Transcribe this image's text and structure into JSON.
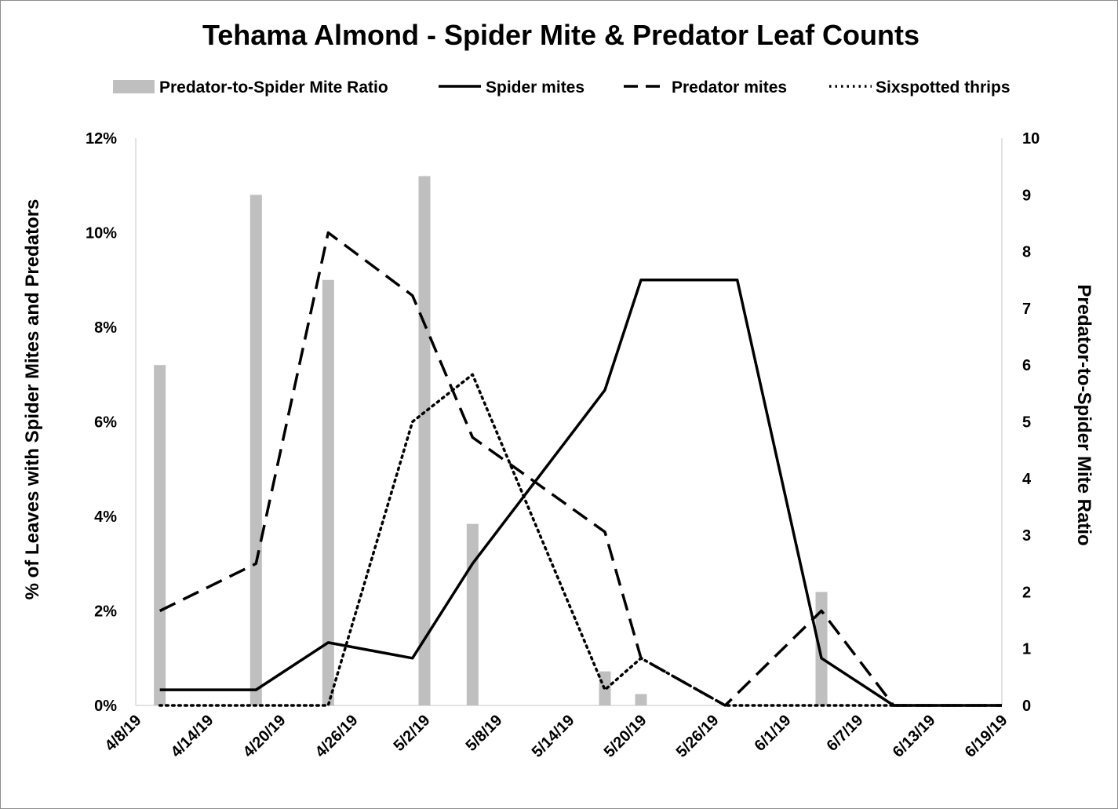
{
  "chart_data": {
    "type": "bar+line",
    "title": "Tehama Almond - Spider Mite & Predator Leaf Counts",
    "ylabel_left": "% of Leaves with Spider Mites and Predators",
    "ylabel_right": "Predator-to-Spider Mite Ratio",
    "ylim_left": [
      0,
      12
    ],
    "ylim_right": [
      0,
      10
    ],
    "y_ticks_left": [
      "0%",
      "2%",
      "4%",
      "6%",
      "8%",
      "10%",
      "12%"
    ],
    "y_ticks_right": [
      "0",
      "1",
      "2",
      "3",
      "4",
      "5",
      "6",
      "7",
      "8",
      "9",
      "10"
    ],
    "x_ticks": [
      "4/8/19",
      "4/14/19",
      "4/20/19",
      "4/26/19",
      "5/2/19",
      "5/8/19",
      "5/14/19",
      "5/20/19",
      "5/26/19",
      "6/1/19",
      "6/7/19",
      "6/13/19",
      "6/19/19"
    ],
    "x_range": [
      "4/8/19",
      "6/19/19"
    ],
    "legend_position": "top",
    "grid": false,
    "bars": {
      "name": "Predator-to-Spider Mite Ratio",
      "axis": "right",
      "color": "#bfbfbf",
      "points": [
        {
          "x": "4/10/19",
          "y": 6.0
        },
        {
          "x": "4/18/19",
          "y": 9.0
        },
        {
          "x": "4/24/19",
          "y": 7.5
        },
        {
          "x": "5/2/19",
          "y": 9.33
        },
        {
          "x": "5/6/19",
          "y": 3.2
        },
        {
          "x": "5/17/19",
          "y": 0.6
        },
        {
          "x": "5/20/19",
          "y": 0.2
        },
        {
          "x": "6/4/19",
          "y": 2.0
        }
      ]
    },
    "series": [
      {
        "name": "Spider mites",
        "style": "solid",
        "axis": "left",
        "points": [
          {
            "x": "4/10/19",
            "y": 0.33
          },
          {
            "x": "4/18/19",
            "y": 0.33
          },
          {
            "x": "4/24/19",
            "y": 1.33
          },
          {
            "x": "5/1/19",
            "y": 1.0
          },
          {
            "x": "5/6/19",
            "y": 3.0
          },
          {
            "x": "5/17/19",
            "y": 6.67
          },
          {
            "x": "5/20/19",
            "y": 9.0
          },
          {
            "x": "5/28/19",
            "y": 9.0
          },
          {
            "x": "6/4/19",
            "y": 1.0
          },
          {
            "x": "6/10/19",
            "y": 0.0
          },
          {
            "x": "6/19/19",
            "y": 0.0
          }
        ]
      },
      {
        "name": "Predator mites",
        "style": "dashed",
        "axis": "left",
        "points": [
          {
            "x": "4/10/19",
            "y": 2.0
          },
          {
            "x": "4/18/19",
            "y": 3.0
          },
          {
            "x": "4/24/19",
            "y": 10.0
          },
          {
            "x": "5/1/19",
            "y": 8.67
          },
          {
            "x": "5/6/19",
            "y": 5.67
          },
          {
            "x": "5/17/19",
            "y": 3.67
          },
          {
            "x": "5/20/19",
            "y": 1.0
          },
          {
            "x": "5/27/19",
            "y": 0.0
          },
          {
            "x": "6/4/19",
            "y": 2.0
          },
          {
            "x": "6/10/19",
            "y": 0.0
          },
          {
            "x": "6/19/19",
            "y": 0.0
          }
        ]
      },
      {
        "name": "Sixspotted thrips",
        "style": "dotted",
        "axis": "left",
        "points": [
          {
            "x": "4/10/19",
            "y": 0.0
          },
          {
            "x": "4/18/19",
            "y": 0.0
          },
          {
            "x": "4/24/19",
            "y": 0.0
          },
          {
            "x": "5/1/19",
            "y": 6.0
          },
          {
            "x": "5/6/19",
            "y": 7.0
          },
          {
            "x": "5/17/19",
            "y": 0.33
          },
          {
            "x": "5/20/19",
            "y": 1.0
          },
          {
            "x": "5/27/19",
            "y": 0.0
          },
          {
            "x": "6/4/19",
            "y": 0.0
          },
          {
            "x": "6/10/19",
            "y": 0.0
          },
          {
            "x": "6/19/19",
            "y": 0.0
          }
        ]
      }
    ]
  }
}
